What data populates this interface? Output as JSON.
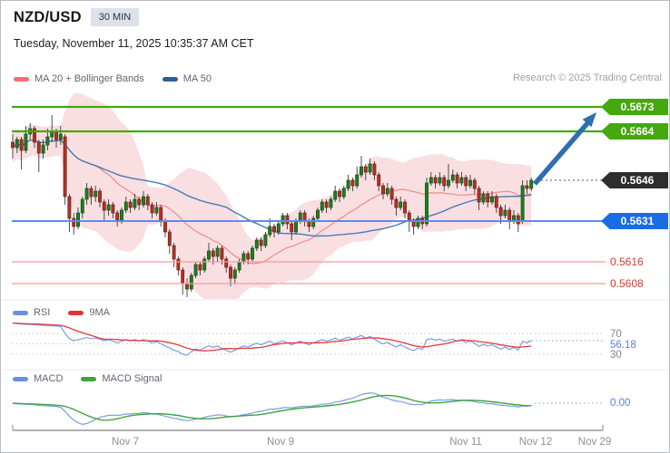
{
  "header": {
    "symbol": "NZD/USD",
    "timeframe": "30 MIN",
    "datetime": "Tuesday, November 11, 2025 10:35:37 AM CET",
    "copyright": "Research © 2025 Trading Central"
  },
  "main_legend": {
    "ma20": "MA 20 + Bollinger Bands",
    "ma50": "MA 50"
  },
  "rsi_panel": {
    "legend_rsi": "RSI",
    "legend_ma": "9MA",
    "upper": "70",
    "current": "56.18",
    "lower": "30"
  },
  "macd_panel": {
    "legend_macd": "MACD",
    "legend_signal": "MACD Signal",
    "zero": "0.00"
  },
  "colors": {
    "resistance_green": "#44a80e",
    "support_blue": "#1a6ce4",
    "support_line_blue": "#5b8bea",
    "last_tag_black": "#2d2d2d",
    "minor_red_line": "#f49b9b",
    "minor_red_text": "#d43a2f",
    "band_pink": "#f8d7da",
    "ma20_red": "#ef8a8a",
    "ma50_blue": "#4a7ab8",
    "candle_up": "#1e7e24",
    "candle_down": "#b03228",
    "rsi_blue": "#7b9ce8",
    "rsi_ma_red": "#e23b3b",
    "macd_blue": "#7b9ce8",
    "macd_signal_green": "#3fa33f",
    "arrow_blue": "#2e6fae"
  },
  "chart_data": {
    "type": "candlestick",
    "title": "NZD/USD 30 MIN",
    "ylim": [
      0.56,
      0.5676
    ],
    "x_labels": [
      "Nov 7",
      "Nov 9",
      "Nov 11",
      "Nov 12",
      "Nov 29"
    ],
    "levels": [
      {
        "label": "0.5673",
        "price": 0.5673,
        "style": "resistance"
      },
      {
        "label": "0.5664",
        "price": 0.5664,
        "style": "resistance"
      },
      {
        "label": "0.5646",
        "price": 0.5646,
        "style": "last"
      },
      {
        "label": "0.5631",
        "price": 0.5631,
        "style": "support"
      },
      {
        "label": "0.5616",
        "price": 0.5616,
        "style": "minor"
      },
      {
        "label": "0.5608",
        "price": 0.5608,
        "style": "minor"
      }
    ],
    "annotations": {
      "arrow": {
        "from_price": 0.5646,
        "to_price": 0.5673,
        "direction": "up"
      }
    },
    "overlays": {
      "bollinger_period": 20,
      "bollinger_stddev": 2,
      "ma_period": 50
    },
    "candles": [
      [
        0.566,
        0.5663,
        0.5654,
        0.5658
      ],
      [
        0.5658,
        0.5662,
        0.5656,
        0.5661
      ],
      [
        0.5661,
        0.5662,
        0.565,
        0.5657
      ],
      [
        0.5657,
        0.5666,
        0.5656,
        0.5663
      ],
      [
        0.5663,
        0.5667,
        0.5661,
        0.5665
      ],
      [
        0.5665,
        0.5666,
        0.5658,
        0.566
      ],
      [
        0.566,
        0.5661,
        0.5649,
        0.5656
      ],
      [
        0.5656,
        0.5661,
        0.5654,
        0.5659
      ],
      [
        0.5659,
        0.5665,
        0.5657,
        0.5662
      ],
      [
        0.5662,
        0.567,
        0.566,
        0.5664
      ],
      [
        0.5664,
        0.5665,
        0.5658,
        0.5661
      ],
      [
        0.5661,
        0.5666,
        0.5659,
        0.5663
      ],
      [
        0.5662,
        0.5663,
        0.5637,
        0.564
      ],
      [
        0.564,
        0.5641,
        0.5627,
        0.5632
      ],
      [
        0.5632,
        0.5634,
        0.5626,
        0.5629
      ],
      [
        0.5629,
        0.5636,
        0.5628,
        0.5634
      ],
      [
        0.5634,
        0.564,
        0.5632,
        0.5639
      ],
      [
        0.5639,
        0.5645,
        0.5637,
        0.5643
      ],
      [
        0.5643,
        0.5644,
        0.5637,
        0.564
      ],
      [
        0.564,
        0.5644,
        0.5638,
        0.5642
      ],
      [
        0.5642,
        0.5643,
        0.5636,
        0.5638
      ],
      [
        0.5638,
        0.5639,
        0.5631,
        0.5635
      ],
      [
        0.5635,
        0.5639,
        0.5633,
        0.5637
      ],
      [
        0.5637,
        0.5638,
        0.5632,
        0.5634
      ],
      [
        0.5634,
        0.5635,
        0.5629,
        0.5631
      ],
      [
        0.5631,
        0.5636,
        0.563,
        0.5635
      ],
      [
        0.5635,
        0.564,
        0.5634,
        0.5638
      ],
      [
        0.5638,
        0.5639,
        0.5634,
        0.5636
      ],
      [
        0.5636,
        0.5641,
        0.5635,
        0.5639
      ],
      [
        0.5639,
        0.564,
        0.5635,
        0.5637
      ],
      [
        0.5637,
        0.5642,
        0.5636,
        0.564
      ],
      [
        0.564,
        0.5641,
        0.5635,
        0.5637
      ],
      [
        0.5637,
        0.5638,
        0.5632,
        0.5634
      ],
      [
        0.5634,
        0.5638,
        0.5633,
        0.5636
      ],
      [
        0.5636,
        0.5637,
        0.5629,
        0.5631
      ],
      [
        0.5631,
        0.5632,
        0.5625,
        0.5627
      ],
      [
        0.5627,
        0.5628,
        0.5619,
        0.5622
      ],
      [
        0.5622,
        0.5623,
        0.5614,
        0.5617
      ],
      [
        0.5617,
        0.5618,
        0.5611,
        0.5613
      ],
      [
        0.5613,
        0.5614,
        0.5604,
        0.5608
      ],
      [
        0.5608,
        0.561,
        0.5603,
        0.5606
      ],
      [
        0.5606,
        0.5612,
        0.5605,
        0.5611
      ],
      [
        0.5611,
        0.5616,
        0.561,
        0.5615
      ],
      [
        0.5615,
        0.5616,
        0.5611,
        0.5613
      ],
      [
        0.5613,
        0.5618,
        0.5612,
        0.5617
      ],
      [
        0.5617,
        0.5623,
        0.5616,
        0.562
      ],
      [
        0.562,
        0.5621,
        0.5615,
        0.5618
      ],
      [
        0.5618,
        0.5622,
        0.5616,
        0.5621
      ],
      [
        0.5621,
        0.5622,
        0.5615,
        0.5617
      ],
      [
        0.5617,
        0.5618,
        0.5612,
        0.5614
      ],
      [
        0.5614,
        0.5615,
        0.5607,
        0.561
      ],
      [
        0.561,
        0.5614,
        0.5608,
        0.5613
      ],
      [
        0.5613,
        0.5617,
        0.5612,
        0.5616
      ],
      [
        0.5616,
        0.562,
        0.5615,
        0.5619
      ],
      [
        0.5619,
        0.562,
        0.5615,
        0.5617
      ],
      [
        0.5617,
        0.5622,
        0.5616,
        0.5621
      ],
      [
        0.5621,
        0.5625,
        0.562,
        0.5624
      ],
      [
        0.5624,
        0.5625,
        0.562,
        0.5622
      ],
      [
        0.5622,
        0.5627,
        0.5621,
        0.5626
      ],
      [
        0.5626,
        0.5632,
        0.5625,
        0.5629
      ],
      [
        0.5629,
        0.563,
        0.5625,
        0.5627
      ],
      [
        0.5627,
        0.5631,
        0.5626,
        0.563
      ],
      [
        0.563,
        0.5634,
        0.5629,
        0.5633
      ],
      [
        0.5633,
        0.5634,
        0.5628,
        0.563
      ],
      [
        0.563,
        0.5631,
        0.5624,
        0.5627
      ],
      [
        0.5627,
        0.5632,
        0.5626,
        0.5631
      ],
      [
        0.5631,
        0.5635,
        0.563,
        0.5634
      ],
      [
        0.5634,
        0.5635,
        0.5629,
        0.5631
      ],
      [
        0.5631,
        0.5632,
        0.5627,
        0.5629
      ],
      [
        0.5629,
        0.5633,
        0.5628,
        0.5632
      ],
      [
        0.5632,
        0.5636,
        0.5631,
        0.5635
      ],
      [
        0.5635,
        0.5639,
        0.5634,
        0.5638
      ],
      [
        0.5638,
        0.5639,
        0.5634,
        0.5636
      ],
      [
        0.5636,
        0.564,
        0.5635,
        0.5639
      ],
      [
        0.5639,
        0.5644,
        0.5638,
        0.5642
      ],
      [
        0.5642,
        0.5643,
        0.5638,
        0.564
      ],
      [
        0.564,
        0.5644,
        0.5639,
        0.5643
      ],
      [
        0.5643,
        0.5648,
        0.5642,
        0.5646
      ],
      [
        0.5646,
        0.5647,
        0.5642,
        0.5644
      ],
      [
        0.5644,
        0.5651,
        0.5643,
        0.5648
      ],
      [
        0.5648,
        0.5655,
        0.5647,
        0.5651
      ],
      [
        0.5651,
        0.5652,
        0.5646,
        0.5649
      ],
      [
        0.5649,
        0.5654,
        0.5648,
        0.5652
      ],
      [
        0.5652,
        0.5653,
        0.5646,
        0.5648
      ],
      [
        0.5648,
        0.5649,
        0.5642,
        0.5644
      ],
      [
        0.5644,
        0.5645,
        0.5639,
        0.5641
      ],
      [
        0.5641,
        0.5645,
        0.564,
        0.5643
      ],
      [
        0.5643,
        0.5644,
        0.5637,
        0.5639
      ],
      [
        0.5639,
        0.564,
        0.5633,
        0.5636
      ],
      [
        0.5636,
        0.564,
        0.5635,
        0.5638
      ],
      [
        0.5638,
        0.5639,
        0.5632,
        0.5634
      ],
      [
        0.5634,
        0.5635,
        0.5627,
        0.5631
      ],
      [
        0.5631,
        0.5632,
        0.5626,
        0.5629
      ],
      [
        0.5629,
        0.5633,
        0.5628,
        0.5632
      ],
      [
        0.5632,
        0.5633,
        0.5628,
        0.563
      ],
      [
        0.563,
        0.5647,
        0.5629,
        0.5645
      ],
      [
        0.5645,
        0.5649,
        0.5644,
        0.5647
      ],
      [
        0.5647,
        0.5648,
        0.5643,
        0.5645
      ],
      [
        0.5645,
        0.5649,
        0.5644,
        0.5647
      ],
      [
        0.5647,
        0.5648,
        0.5642,
        0.5644
      ],
      [
        0.5644,
        0.5652,
        0.5643,
        0.5646
      ],
      [
        0.5646,
        0.565,
        0.5645,
        0.5648
      ],
      [
        0.5648,
        0.5649,
        0.5643,
        0.5645
      ],
      [
        0.5645,
        0.5649,
        0.5644,
        0.5647
      ],
      [
        0.5647,
        0.5648,
        0.5642,
        0.5644
      ],
      [
        0.5644,
        0.5648,
        0.5643,
        0.5646
      ],
      [
        0.5646,
        0.5647,
        0.5641,
        0.5643
      ],
      [
        0.5643,
        0.5644,
        0.5635,
        0.5638
      ],
      [
        0.5638,
        0.5642,
        0.5637,
        0.5641
      ],
      [
        0.5641,
        0.5642,
        0.5636,
        0.5638
      ],
      [
        0.5638,
        0.5642,
        0.5637,
        0.564
      ],
      [
        0.564,
        0.5641,
        0.5634,
        0.5636
      ],
      [
        0.5636,
        0.5637,
        0.563,
        0.5633
      ],
      [
        0.5633,
        0.5637,
        0.5632,
        0.5635
      ],
      [
        0.5635,
        0.5636,
        0.5628,
        0.5631
      ],
      [
        0.5631,
        0.5635,
        0.563,
        0.5633
      ],
      [
        0.5633,
        0.5634,
        0.5627,
        0.563
      ],
      [
        0.5631,
        0.5646,
        0.563,
        0.5644
      ],
      [
        0.5644,
        0.5646,
        0.5641,
        0.5643
      ],
      [
        0.5643,
        0.5647,
        0.5642,
        0.5646
      ]
    ],
    "indicators": {
      "rsi": {
        "period_ma": 9,
        "grid": [
          70,
          50,
          30
        ],
        "current": 56.18,
        "values": [
          90,
          89,
          88,
          87.5,
          87,
          86.5,
          86,
          85.5,
          85,
          84.5,
          84,
          83.5,
          70,
          60,
          56,
          58,
          60,
          62,
          60,
          61,
          59,
          56,
          58,
          55,
          52,
          55,
          58,
          56,
          58,
          56,
          58,
          55,
          52,
          54,
          50,
          46,
          42,
          38,
          35,
          30,
          28,
          35,
          40,
          38,
          42,
          46,
          43,
          46,
          41,
          38,
          34,
          38,
          42,
          46,
          44,
          48,
          51,
          48,
          52,
          55,
          50,
          53,
          56,
          52,
          48,
          52,
          55,
          51,
          48,
          52,
          55,
          58,
          55,
          58,
          61,
          57,
          60,
          63,
          59,
          63,
          66,
          61,
          64,
          59,
          54,
          50,
          53,
          48,
          44,
          48,
          44,
          40,
          37,
          42,
          39,
          58,
          60,
          57,
          59,
          55,
          57,
          59,
          55,
          57,
          53,
          55,
          51,
          45,
          49,
          46,
          48,
          44,
          40,
          44,
          39,
          43,
          38,
          55,
          52,
          56.18
        ]
      },
      "macd": {
        "signal_period": 9,
        "current": 0.0,
        "values": [
          0,
          -2e-05,
          -3e-05,
          -4e-05,
          -5e-05,
          -6e-05,
          -8e-05,
          -9e-05,
          -0.0001,
          -0.00011,
          -0.00012,
          -0.00015,
          -0.0003,
          -0.00048,
          -0.00062,
          -0.00072,
          -0.00078,
          -0.00075,
          -0.00068,
          -0.0006,
          -0.00052,
          -0.00048,
          -0.00045,
          -0.00044,
          -0.00045,
          -0.00043,
          -0.0004,
          -0.0004,
          -0.00038,
          -0.00038,
          -0.00035,
          -0.00036,
          -0.0004,
          -0.0004,
          -0.00044,
          -0.00048,
          -0.00052,
          -0.00056,
          -0.00058,
          -0.00062,
          -0.00064,
          -0.00062,
          -0.00058,
          -0.00056,
          -0.00052,
          -0.00048,
          -0.00046,
          -0.00043,
          -0.00044,
          -0.00047,
          -0.0005,
          -0.00049,
          -0.00046,
          -0.00042,
          -0.0004,
          -0.00036,
          -0.00032,
          -0.0003,
          -0.00026,
          -0.00022,
          -0.00022,
          -0.0002,
          -0.00017,
          -0.00016,
          -0.00017,
          -0.00015,
          -0.00012,
          -0.00011,
          -0.00012,
          -0.0001,
          -7e-05,
          -4e-05,
          -3e-05,
          -1e-05,
          4e-05,
          6e-05,
          0.0001,
          0.00015,
          0.00018,
          0.00025,
          0.00032,
          0.00035,
          0.00038,
          0.00036,
          0.0003,
          0.00022,
          0.00018,
          0.00012,
          8e-05,
          6e-05,
          2e-05,
          -3e-05,
          -6e-05,
          -4e-05,
          -6e-05,
          2e-05,
          8e-05,
          0.0001,
          0.00012,
          0.00011,
          0.00012,
          0.00013,
          0.00011,
          0.00011,
          9e-05,
          9e-05,
          6e-05,
          2e-05,
          1e-05,
          -2e-05,
          -2e-05,
          -5e-05,
          -8e-05,
          -8e-05,
          -0.00011,
          -0.00011,
          -0.00014,
          -0.0001,
          -0.00011,
          -8e-05
        ]
      }
    }
  }
}
